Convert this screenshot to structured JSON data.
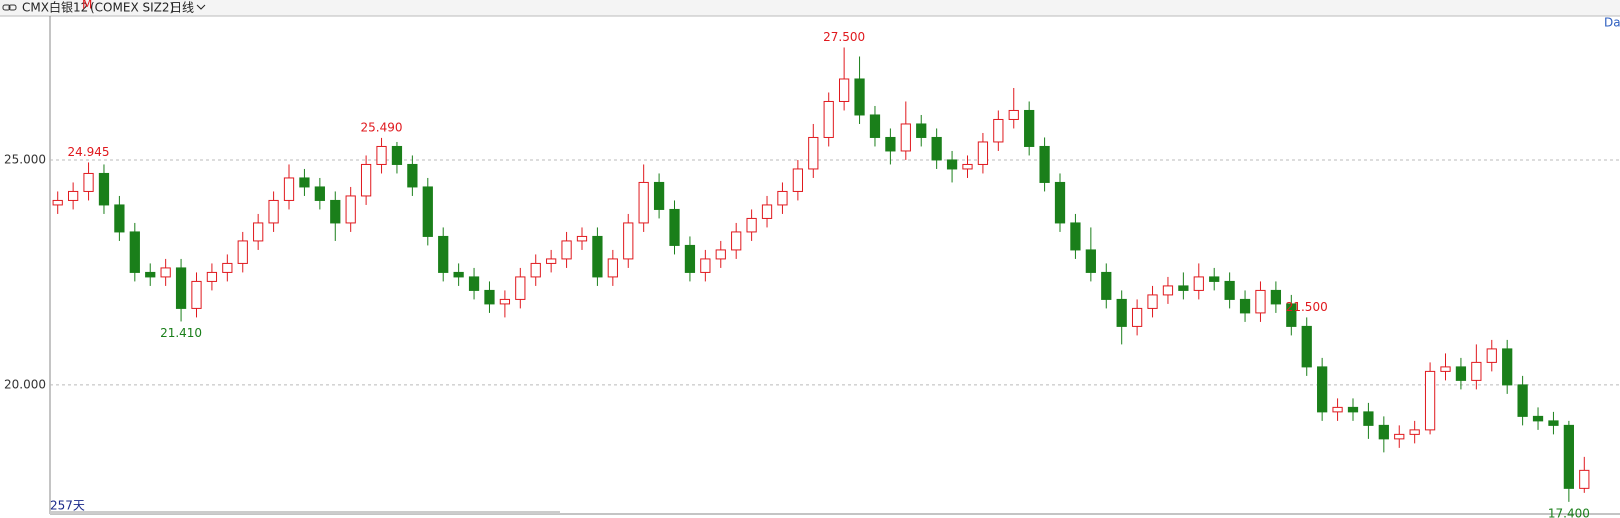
{
  "header": {
    "symbol": "CMX白银12",
    "mark": "M",
    "code": "(COMEX SIZ2)",
    "period": "日线",
    "days": "257天",
    "corner": "Dal"
  },
  "chart_data": {
    "type": "candlestick",
    "up_color": "#e0191e",
    "down_color": "#1a7f1a",
    "grid": true,
    "ylim": [
      17.13,
      28.2
    ],
    "yticks": [
      {
        "value": 20,
        "label": "20.000"
      },
      {
        "value": 25,
        "label": "25.000"
      }
    ],
    "open": [
      24.0,
      24.1,
      24.3,
      24.7,
      24.0,
      23.4,
      22.5,
      22.4,
      22.6,
      21.7,
      22.3,
      22.5,
      22.7,
      23.2,
      23.6,
      24.1,
      24.6,
      24.4,
      24.1,
      23.6,
      24.2,
      24.9,
      25.3,
      24.9,
      24.4,
      23.3,
      22.5,
      22.4,
      22.1,
      21.8,
      21.9,
      22.4,
      22.7,
      22.8,
      23.2,
      23.3,
      22.4,
      22.8,
      23.6,
      24.5,
      23.9,
      23.1,
      22.5,
      22.8,
      23.0,
      23.4,
      23.7,
      24.0,
      24.3,
      24.8,
      25.5,
      26.3,
      26.8,
      26.0,
      25.5,
      25.2,
      25.8,
      25.5,
      25.0,
      24.8,
      24.9,
      25.4,
      25.9,
      26.1,
      25.3,
      24.5,
      23.6,
      23.0,
      22.5,
      21.9,
      21.3,
      21.7,
      22.0,
      22.2,
      22.1,
      22.4,
      22.3,
      21.9,
      21.6,
      22.1,
      21.8,
      21.3,
      20.4,
      19.4,
      19.5,
      19.4,
      19.1,
      18.8,
      18.9,
      19.0,
      20.3,
      20.4,
      20.1,
      20.5,
      20.8,
      20.0,
      19.3,
      19.2,
      19.1,
      17.7
    ],
    "high": [
      24.3,
      24.5,
      24.945,
      24.9,
      24.2,
      23.6,
      22.7,
      22.8,
      22.8,
      22.5,
      22.7,
      22.9,
      23.4,
      23.8,
      24.3,
      24.9,
      24.8,
      24.6,
      24.3,
      24.4,
      25.1,
      25.49,
      25.4,
      25.1,
      24.6,
      23.5,
      22.7,
      22.6,
      22.3,
      22.1,
      22.6,
      22.9,
      23.0,
      23.4,
      23.5,
      23.5,
      23.0,
      23.8,
      24.9,
      24.7,
      24.1,
      23.3,
      23.0,
      23.2,
      23.6,
      23.9,
      24.2,
      24.5,
      25.0,
      25.8,
      26.5,
      27.5,
      27.3,
      26.2,
      25.7,
      26.3,
      26.0,
      25.7,
      25.2,
      25.1,
      25.6,
      26.1,
      26.6,
      26.3,
      25.5,
      24.7,
      23.8,
      23.5,
      22.7,
      22.1,
      21.9,
      22.2,
      22.4,
      22.5,
      22.7,
      22.6,
      22.5,
      22.1,
      22.3,
      22.3,
      22.0,
      21.5,
      20.6,
      19.7,
      19.7,
      19.6,
      19.3,
      19.1,
      19.2,
      20.5,
      20.7,
      20.6,
      20.9,
      21.0,
      21.0,
      20.2,
      19.5,
      19.4,
      19.2,
      18.4
    ],
    "low": [
      23.8,
      23.9,
      24.1,
      23.8,
      23.2,
      22.3,
      22.2,
      22.2,
      21.41,
      21.5,
      22.1,
      22.3,
      22.5,
      23.0,
      23.4,
      23.9,
      24.2,
      23.9,
      23.2,
      23.4,
      24.0,
      24.7,
      24.7,
      24.2,
      23.1,
      22.3,
      22.2,
      21.9,
      21.6,
      21.5,
      21.7,
      22.2,
      22.5,
      22.6,
      23.0,
      22.2,
      22.2,
      22.6,
      23.4,
      23.7,
      22.9,
      22.3,
      22.3,
      22.6,
      22.8,
      23.2,
      23.5,
      23.8,
      24.1,
      24.6,
      25.3,
      26.1,
      25.8,
      25.3,
      24.9,
      25.0,
      25.3,
      24.8,
      24.5,
      24.6,
      24.7,
      25.2,
      25.7,
      25.1,
      24.3,
      23.4,
      22.8,
      22.3,
      21.7,
      20.9,
      21.1,
      21.5,
      21.8,
      21.9,
      21.9,
      22.1,
      21.7,
      21.4,
      21.4,
      21.6,
      21.1,
      20.2,
      19.2,
      19.2,
      19.2,
      18.8,
      18.5,
      18.6,
      18.7,
      18.9,
      20.1,
      19.9,
      19.9,
      20.3,
      19.8,
      19.1,
      19.0,
      18.9,
      17.4,
      17.6
    ],
    "close": [
      24.1,
      24.3,
      24.7,
      24.0,
      23.4,
      22.5,
      22.4,
      22.6,
      21.7,
      22.3,
      22.5,
      22.7,
      23.2,
      23.6,
      24.1,
      24.6,
      24.4,
      24.1,
      23.6,
      24.2,
      24.9,
      25.3,
      24.9,
      24.4,
      23.3,
      22.5,
      22.4,
      22.1,
      21.8,
      21.9,
      22.4,
      22.7,
      22.8,
      23.2,
      23.3,
      22.4,
      22.8,
      23.6,
      24.5,
      23.9,
      23.1,
      22.5,
      22.8,
      23.0,
      23.4,
      23.7,
      24.0,
      24.3,
      24.8,
      25.5,
      26.3,
      26.8,
      26.0,
      25.5,
      25.2,
      25.8,
      25.5,
      25.0,
      24.8,
      24.9,
      25.4,
      25.9,
      26.1,
      25.3,
      24.5,
      23.6,
      23.0,
      22.5,
      21.9,
      21.3,
      21.7,
      22.0,
      22.2,
      22.1,
      22.4,
      22.3,
      21.9,
      21.6,
      22.1,
      21.8,
      21.3,
      20.4,
      19.4,
      19.5,
      19.4,
      19.1,
      18.8,
      18.9,
      19.0,
      20.3,
      20.4,
      20.1,
      20.5,
      20.8,
      20.0,
      19.3,
      19.2,
      19.1,
      17.7,
      18.1
    ],
    "annotations": [
      {
        "value": 24.945,
        "label": "24.945"
      },
      {
        "value": 21.41,
        "label": "21.410"
      },
      {
        "value": 25.49,
        "label": "25.490"
      },
      {
        "value": 21.5,
        "label": "21.500"
      },
      {
        "value": 27.5,
        "label": "27.500"
      },
      {
        "value": 17.4,
        "label": "17.400"
      }
    ]
  }
}
